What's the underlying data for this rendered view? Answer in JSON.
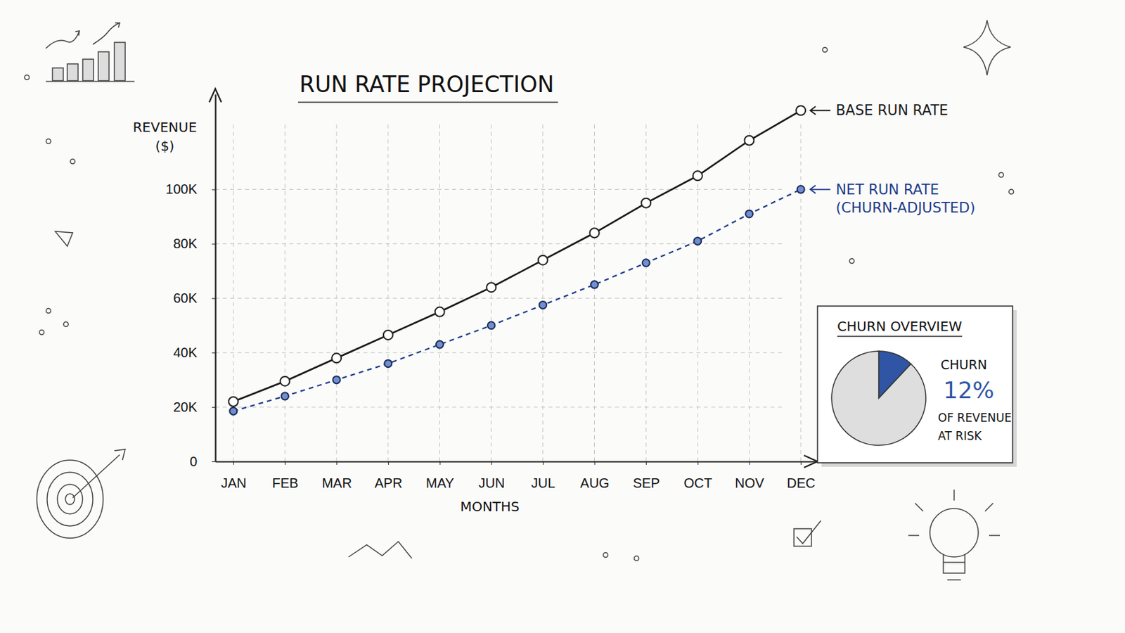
{
  "chart_data": [
    {
      "type": "line",
      "title": "RUN RATE PROJECTION",
      "x_label": "MONTHS",
      "y_label": "REVENUE ($)",
      "categories": [
        "JAN",
        "FEB",
        "MAR",
        "APR",
        "MAY",
        "JUN",
        "JUL",
        "AUG",
        "SEP",
        "OCT",
        "NOV",
        "DEC"
      ],
      "series": [
        {
          "name": "BASE RUN RATE",
          "color": "#1a1a1a",
          "line_style": "solid",
          "marker": "circle",
          "values": [
            22000,
            29500,
            38000,
            46500,
            55000,
            64000,
            74000,
            84000,
            95000,
            105000,
            118000,
            129000
          ]
        },
        {
          "name": "NET RUN RATE (CHURN-ADJUSTED)",
          "color": "#1f3c88",
          "line_style": "dashed",
          "marker": "circle",
          "values": [
            18500,
            24000,
            30000,
            36000,
            43000,
            50000,
            57500,
            65000,
            73000,
            81000,
            91000,
            100000
          ]
        }
      ],
      "ylim": [
        0,
        135000
      ],
      "yticks": [
        0,
        {
          "value": 20000,
          "label": "20K"
        },
        {
          "value": 40000,
          "label": "40K"
        },
        {
          "value": 60000,
          "label": "60K"
        },
        {
          "value": 80000,
          "label": "80K"
        },
        {
          "value": 100000,
          "label": "100K"
        }
      ],
      "grid": true
    },
    {
      "type": "pie",
      "title": "CHURN OVERVIEW",
      "categories": [
        "CHURN",
        null
      ],
      "values": [
        12,
        88
      ],
      "value_labels": [
        "12%",
        null
      ],
      "colors": [
        "#2f55a4",
        "#dedede"
      ],
      "data_labels": true,
      "annotations": [
        "OF REVENUE AT RISK"
      ]
    }
  ]
}
